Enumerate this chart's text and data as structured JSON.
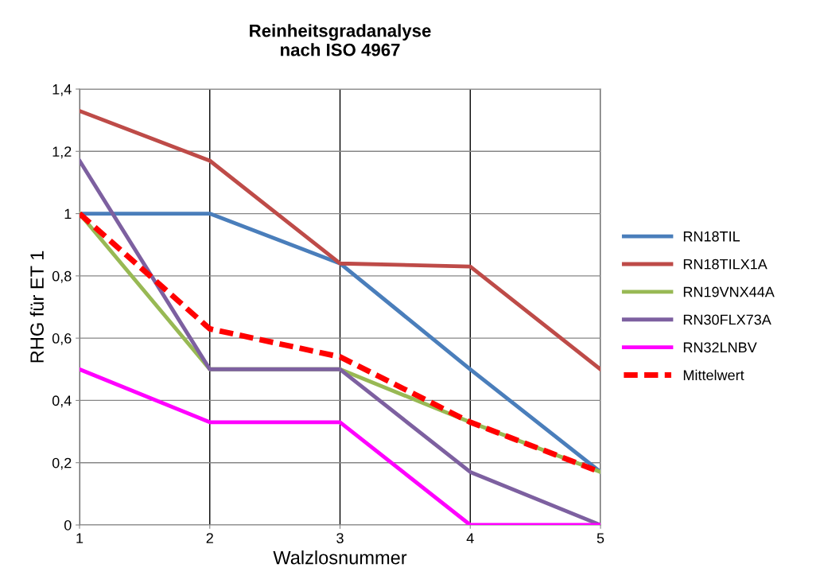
{
  "chart_data": {
    "type": "line",
    "title": "Reinheitsgradanalyse\nnach ISO 4967",
    "xlabel": "Walzlosnummer",
    "ylabel": "RHG für ET 1",
    "x": [
      1,
      2,
      3,
      4,
      5
    ],
    "xlim": [
      1,
      5
    ],
    "xticks": [
      1,
      2,
      3,
      4,
      5
    ],
    "ylim": [
      0,
      1.4
    ],
    "yticks": [
      {
        "value": 0,
        "label": "0"
      },
      {
        "value": 0.2,
        "label": "0,2"
      },
      {
        "value": 0.4,
        "label": "0,4"
      },
      {
        "value": 0.6,
        "label": "0,6"
      },
      {
        "value": 0.8,
        "label": "0,8"
      },
      {
        "value": 1,
        "label": "1"
      },
      {
        "value": 1.2,
        "label": "1,2"
      },
      {
        "value": 1.4,
        "label": "1,4"
      }
    ],
    "grid": true,
    "legend": "right",
    "marker": "none",
    "series": [
      {
        "name": "RN18TIL",
        "color": "#4a7ebb",
        "values": [
          1,
          1,
          0.84,
          0.5,
          0.17
        ]
      },
      {
        "name": "RN18TILX1A",
        "color": "#be4b48",
        "values": [
          1.33,
          1.17,
          0.84,
          0.83,
          0.5
        ]
      },
      {
        "name": "RN19VNX44A",
        "color": "#98b954",
        "values": [
          1,
          0.5,
          0.5,
          0.33,
          0.17
        ]
      },
      {
        "name": "RN30FLX73A",
        "color": "#7d60a0",
        "values": [
          1.17,
          0.5,
          0.5,
          0.17,
          0
        ]
      },
      {
        "name": "RN32LNBV",
        "color": "#ff00ff",
        "values": [
          0.5,
          0.33,
          0.33,
          0,
          0
        ]
      },
      {
        "name": "Mittelwert",
        "color": "#ff0000",
        "line_style": "dashed",
        "values": [
          1.0,
          0.63,
          0.54,
          0.33,
          0.17
        ]
      }
    ]
  }
}
